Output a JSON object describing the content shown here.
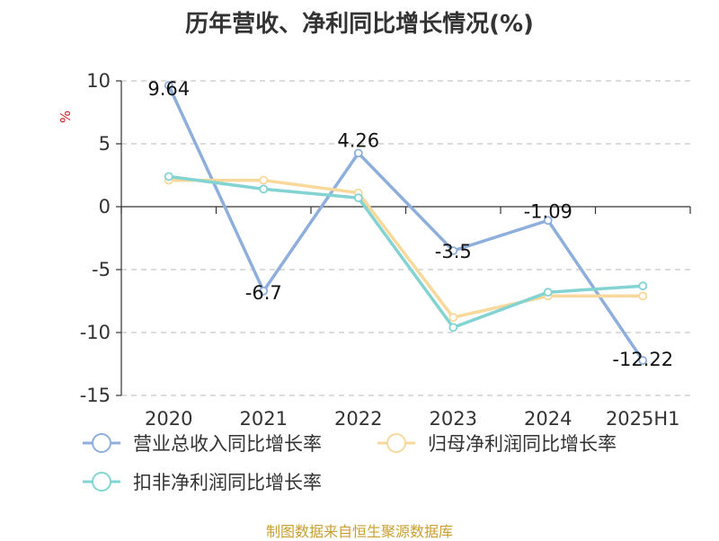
{
  "chart_data": {
    "type": "line",
    "title": "历年营收、净利同比增长情况(%)",
    "ylabel": "%",
    "ylim": [
      -15,
      10
    ],
    "yticks": [
      10,
      5,
      0,
      -5,
      -10,
      -15
    ],
    "categories": [
      "2020",
      "2021",
      "2022",
      "2023",
      "2024",
      "2025H1"
    ],
    "grid": true,
    "legend_position": "bottom",
    "series": [
      {
        "name": "营业总收入同比增长率",
        "color": "#8eaedb",
        "values": [
          9.64,
          -6.7,
          4.26,
          -3.5,
          -1.09,
          -12.22
        ],
        "labels": [
          "9.64",
          "-6.7",
          "4.26",
          "-3.5",
          "-1.09",
          "-12.22"
        ]
      },
      {
        "name": "归母净利润同比增长率",
        "color": "#f8d99b",
        "values": [
          2.1,
          2.1,
          1.1,
          -8.8,
          -7.1,
          -7.1
        ]
      },
      {
        "name": "扣非净利润同比增长率",
        "color": "#84d3d3",
        "values": [
          2.4,
          1.4,
          0.7,
          -9.6,
          -6.8,
          -6.3
        ]
      }
    ]
  },
  "footer": "制图数据来自恒生聚源数据库"
}
